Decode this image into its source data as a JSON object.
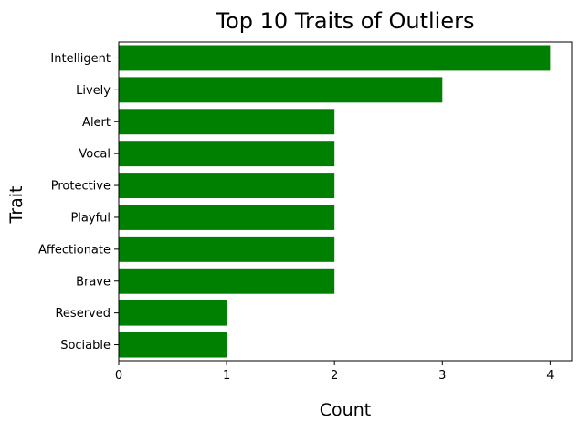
{
  "chart_data": {
    "type": "bar",
    "orientation": "horizontal",
    "title": "Top 10 Traits of Outliers",
    "xlabel": "Count",
    "ylabel": "Trait",
    "categories": [
      "Intelligent",
      "Lively",
      "Alert",
      "Vocal",
      "Protective",
      "Playful",
      "Affectionate",
      "Brave",
      "Reserved",
      "Sociable"
    ],
    "values": [
      4,
      3,
      2,
      2,
      2,
      2,
      2,
      2,
      1,
      1
    ],
    "xlim": [
      0,
      4.2
    ],
    "xticks": [
      "0",
      "1",
      "2",
      "3",
      "4"
    ],
    "bar_color": "#008000",
    "grid": false,
    "legend": "none"
  }
}
